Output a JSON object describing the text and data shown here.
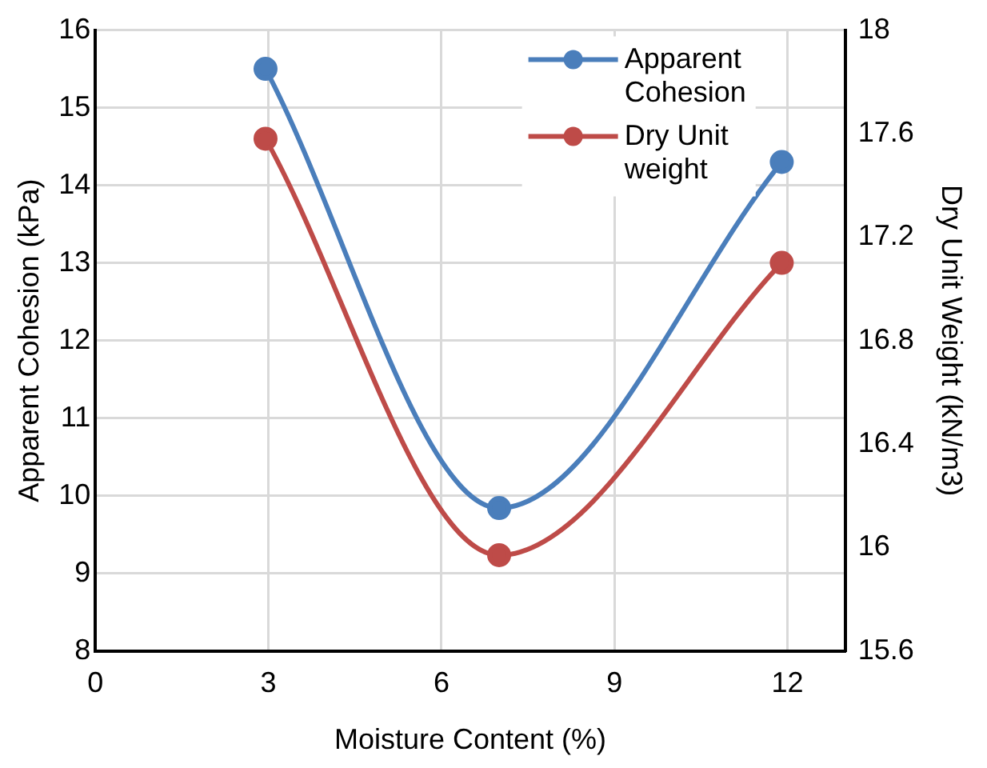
{
  "chart_data": {
    "type": "line",
    "xlabel": "Moisture Content (%)",
    "ylabel": "Apparent Cohesion (kPa)",
    "y2label": "Dry Unit Weight (kN/m3)",
    "x": [
      2.95,
      7,
      11.9
    ],
    "series": [
      {
        "name": "Apparent Cohesion",
        "color": "#4a7ebb",
        "values": [
          15.5,
          9.84,
          14.3
        ]
      },
      {
        "name": "Dry Unit weight",
        "color": "#be4b48",
        "values": [
          17.58,
          15.97,
          17.1
        ],
        "axis": "y2"
      }
    ],
    "xlim": [
      0,
      13
    ],
    "xticks": [
      0,
      3,
      6,
      9,
      12
    ],
    "ylim": [
      8,
      16
    ],
    "yticks": [
      8,
      9,
      10,
      11,
      12,
      13,
      14,
      15,
      16
    ],
    "y2lim": [
      15.6,
      18
    ],
    "y2ticks": [
      {
        "value": 15.6,
        "label": "15.6"
      },
      {
        "value": 16,
        "label": "16"
      },
      {
        "value": 16.4,
        "label": "16.4"
      },
      {
        "value": 16.8,
        "label": "16.8"
      },
      {
        "value": 17.2,
        "label": "17.2"
      },
      {
        "value": 17.6,
        "label": "17.6"
      },
      {
        "value": 18,
        "label": "18"
      }
    ],
    "grid": true,
    "legend": "top right",
    "marker": "circle",
    "line_style": "solid"
  }
}
